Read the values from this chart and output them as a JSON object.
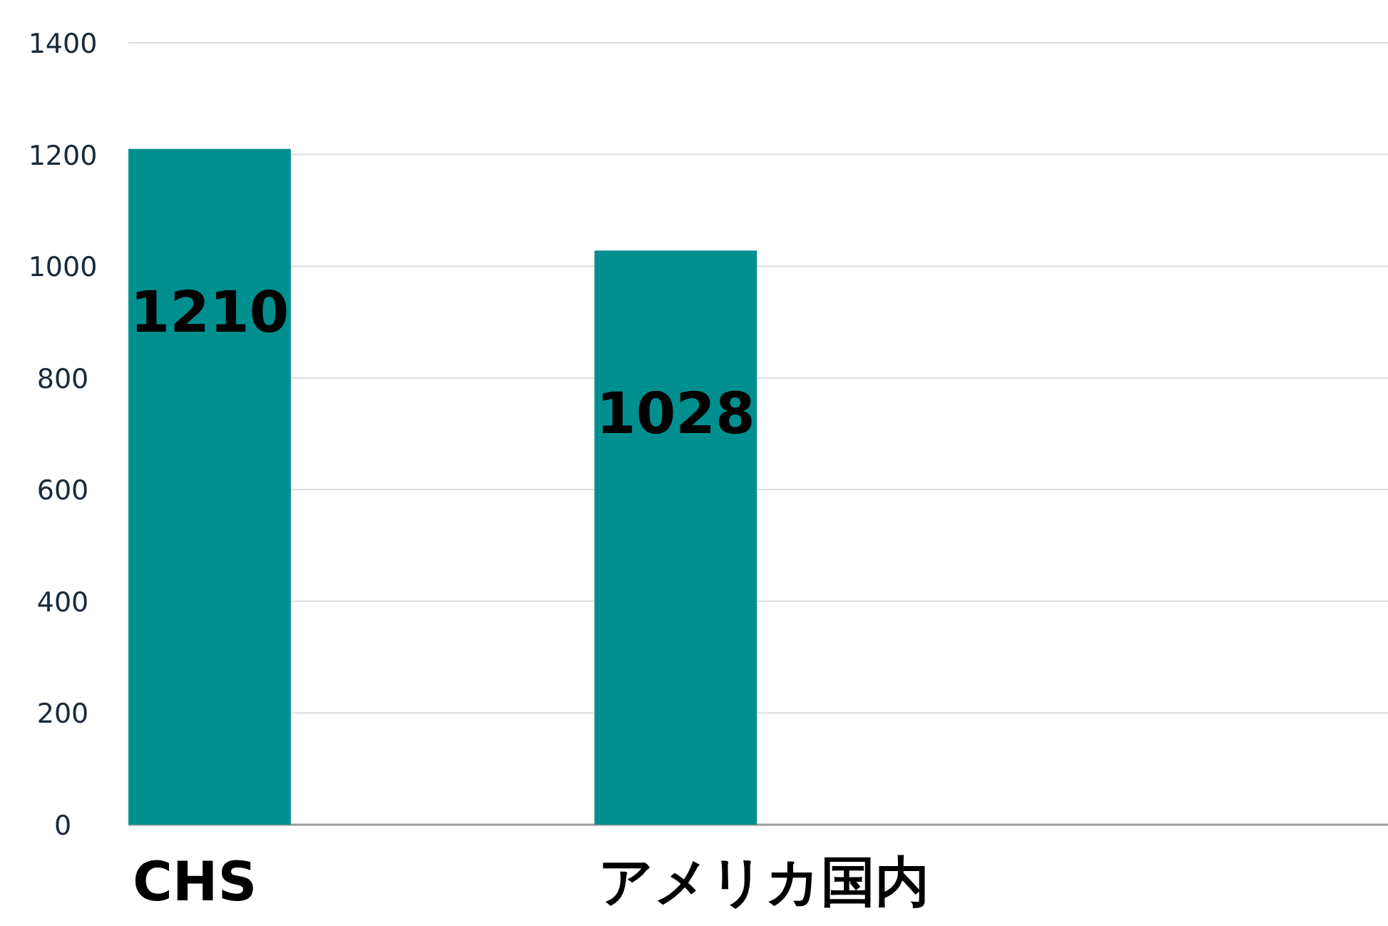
{
  "chart_data": {
    "type": "bar",
    "categories": [
      "CHS",
      "アメリカ国内"
    ],
    "values": [
      1210,
      1028
    ],
    "color": "#008f8f",
    "ylim": [
      0,
      1400
    ],
    "yticks": [
      0,
      200,
      400,
      600,
      800,
      1000,
      1200,
      1400
    ],
    "grid": "y",
    "data_labels": true
  }
}
